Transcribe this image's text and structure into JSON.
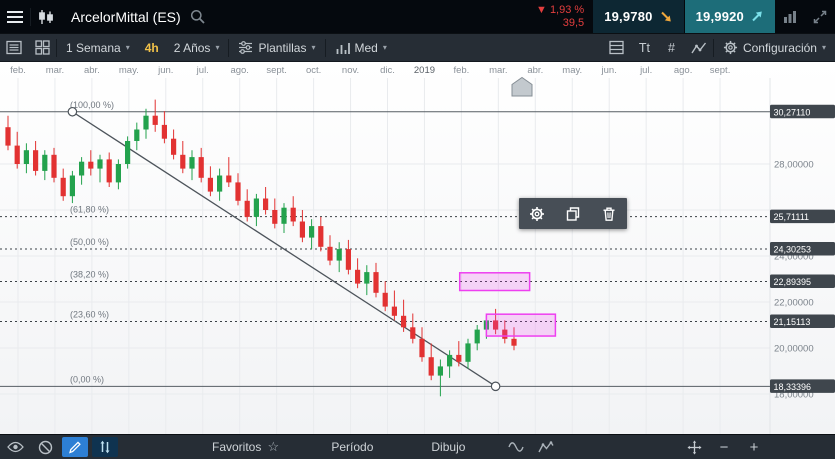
{
  "topbar": {
    "title": "ArcelorMittal (ES)",
    "change": {
      "arrow": "▼",
      "pct": "1,93 %",
      "abs": "39,5"
    },
    "sell": {
      "price": "19,9780"
    },
    "buy": {
      "price": "19,9920"
    }
  },
  "toolbar": {
    "timeframe": "1 Semana",
    "interval_badge": "4h",
    "range": "2 Años",
    "templates": "Plantillas",
    "average": "Med",
    "text_tool": "Tt",
    "hash_tool": "#",
    "settings": "Configuración"
  },
  "bottombar": {
    "favorites": "Favoritos",
    "period": "Período",
    "draw": "Dibujo",
    "zoom_out": "−",
    "zoom_in": "+"
  },
  "icons": {
    "caret_down": "▾",
    "star": "☆"
  },
  "colors": {
    "accent_yellow": "#f2c249",
    "negative_red": "#e33e3e",
    "sell_box": "#0d2733",
    "buy_box": "#1d6d79",
    "sell_arrow": "#efa73c",
    "buy_arrow": "#7be0ea",
    "active_blue": "#2d7fd4"
  },
  "chart_data": {
    "type": "candlestick",
    "title": "ArcelorMittal (ES)",
    "timeframe": "1 Semana",
    "range": "2 Años",
    "x_months": [
      "feb.",
      "mar.",
      "abr.",
      "may.",
      "jun.",
      "jul.",
      "ago.",
      "sept.",
      "oct.",
      "nov.",
      "dic.",
      "2019",
      "feb.",
      "mar.",
      "abr.",
      "may.",
      "jun.",
      "jul.",
      "ago.",
      "sept."
    ],
    "ylim": [
      16.2,
      31.7
    ],
    "y_ticks": [
      {
        "price": 28,
        "label": "28,00000"
      },
      {
        "price": 26,
        "label": ""
      },
      {
        "price": 24,
        "label": "24,00000"
      },
      {
        "price": 22,
        "label": "22,00000"
      },
      {
        "price": 20,
        "label": "20,00000"
      },
      {
        "price": 18,
        "label": "18,00000"
      }
    ],
    "candles": [
      [
        29.6,
        30.1,
        28.6,
        28.8
      ],
      [
        28.8,
        29.4,
        27.8,
        28.0
      ],
      [
        28.0,
        28.9,
        27.6,
        28.6
      ],
      [
        28.6,
        29.0,
        27.5,
        27.7
      ],
      [
        27.7,
        28.6,
        27.3,
        28.4
      ],
      [
        28.4,
        28.7,
        27.2,
        27.4
      ],
      [
        27.4,
        27.8,
        26.4,
        26.6
      ],
      [
        26.6,
        27.7,
        26.3,
        27.5
      ],
      [
        27.5,
        28.3,
        27.1,
        28.1
      ],
      [
        28.1,
        28.6,
        27.5,
        27.8
      ],
      [
        27.8,
        28.4,
        27.2,
        28.2
      ],
      [
        28.2,
        28.5,
        27.0,
        27.2
      ],
      [
        27.2,
        28.2,
        26.9,
        28.0
      ],
      [
        28.0,
        29.2,
        27.8,
        29.0
      ],
      [
        29.0,
        29.8,
        28.6,
        29.5
      ],
      [
        29.5,
        30.4,
        29.1,
        30.1
      ],
      [
        30.1,
        30.8,
        29.4,
        29.7
      ],
      [
        29.7,
        30.3,
        28.9,
        29.1
      ],
      [
        29.1,
        29.5,
        28.2,
        28.4
      ],
      [
        28.4,
        29.0,
        27.6,
        27.8
      ],
      [
        27.8,
        28.6,
        27.3,
        28.3
      ],
      [
        28.3,
        28.7,
        27.2,
        27.4
      ],
      [
        27.4,
        27.9,
        26.6,
        26.8
      ],
      [
        26.8,
        27.8,
        26.4,
        27.5
      ],
      [
        27.5,
        28.3,
        27.0,
        27.2
      ],
      [
        27.2,
        27.6,
        26.2,
        26.4
      ],
      [
        26.4,
        26.9,
        25.5,
        25.7
      ],
      [
        25.7,
        26.7,
        25.3,
        26.5
      ],
      [
        26.5,
        27.0,
        25.8,
        26.0
      ],
      [
        26.0,
        26.5,
        25.2,
        25.4
      ],
      [
        25.4,
        26.3,
        25.0,
        26.1
      ],
      [
        26.1,
        26.6,
        25.3,
        25.5
      ],
      [
        25.5,
        26.0,
        24.6,
        24.8
      ],
      [
        24.8,
        25.6,
        24.3,
        25.3
      ],
      [
        25.3,
        25.7,
        24.2,
        24.4
      ],
      [
        24.4,
        24.9,
        23.6,
        23.8
      ],
      [
        23.8,
        24.6,
        23.3,
        24.3
      ],
      [
        24.3,
        24.7,
        23.2,
        23.4
      ],
      [
        23.4,
        23.9,
        22.6,
        22.8
      ],
      [
        22.8,
        23.6,
        22.3,
        23.3
      ],
      [
        23.3,
        23.7,
        22.2,
        22.4
      ],
      [
        22.4,
        22.9,
        21.6,
        21.8
      ],
      [
        21.8,
        22.5,
        21.2,
        21.4
      ],
      [
        21.4,
        22.1,
        20.7,
        20.9
      ],
      [
        20.9,
        21.5,
        20.2,
        20.4
      ],
      [
        20.4,
        20.9,
        19.4,
        19.6
      ],
      [
        19.6,
        20.2,
        18.6,
        18.8
      ],
      [
        18.8,
        19.5,
        17.9,
        19.2
      ],
      [
        19.2,
        19.9,
        18.7,
        19.7
      ],
      [
        19.7,
        20.3,
        19.2,
        19.4
      ],
      [
        19.4,
        20.4,
        19.1,
        20.2
      ],
      [
        20.2,
        21.0,
        19.9,
        20.8
      ],
      [
        20.8,
        21.4,
        20.4,
        21.2
      ],
      [
        21.2,
        21.7,
        20.6,
        20.8
      ],
      [
        20.8,
        21.2,
        20.2,
        20.4
      ],
      [
        20.4,
        20.9,
        19.9,
        20.1
      ]
    ],
    "fibonacci": [
      {
        "pct_label": "(100,00 %)",
        "price": 30.2711,
        "axis_label": "30,27110",
        "style": "solid"
      },
      {
        "pct_label": "(61,80 %)",
        "price": 25.71111,
        "axis_label": "25,71111",
        "style": "dashed"
      },
      {
        "pct_label": "(50,00 %)",
        "price": 24.30253,
        "axis_label": "24,30253",
        "style": "dashed"
      },
      {
        "pct_label": "(38,20 %)",
        "price": 22.89395,
        "axis_label": "22,89395",
        "style": "dashed"
      },
      {
        "pct_label": "(23,60 %)",
        "price": 21.15113,
        "axis_label": "21,15113",
        "style": "dashed"
      },
      {
        "pct_label": "(0,00 %)",
        "price": 18.33396,
        "axis_label": "18,33396",
        "style": "solid"
      }
    ],
    "trendline": {
      "from": {
        "index": 7,
        "price": 30.2711
      },
      "to": {
        "index": 53,
        "price": 18.33396
      }
    },
    "highlight_boxes": [
      {
        "x1_index": 49.1,
        "x2_index": 56.7,
        "price_top": 23.27,
        "price_bottom": 22.5
      },
      {
        "x1_index": 52.0,
        "x2_index": 59.5,
        "price_top": 21.47,
        "price_bottom": 20.52
      }
    ],
    "colors": {
      "up": "#23a24d",
      "down": "#e23232",
      "highlight": "#ee3ff0"
    }
  }
}
